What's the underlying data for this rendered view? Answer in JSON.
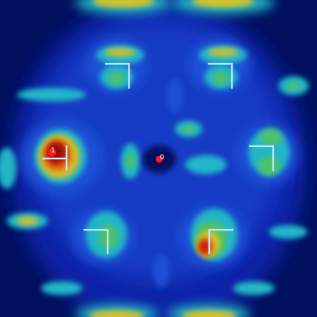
{
  "colors": {
    "background": "#00105e",
    "deep_blue": "#0a24a8",
    "blue": "#1d4fd6",
    "cyan": "#23b6c8",
    "green": "#4fc06a",
    "yellow": "#d3c22a",
    "orange": "#e07a18",
    "red": "#c81a10",
    "dark_red": "#8a0d08",
    "bracket": "#bfe8ff",
    "marker": "#ff1a1a",
    "marker_text": "#ffffff"
  },
  "markers": [
    {
      "label": "0"
    },
    {
      "label": "1"
    }
  ]
}
